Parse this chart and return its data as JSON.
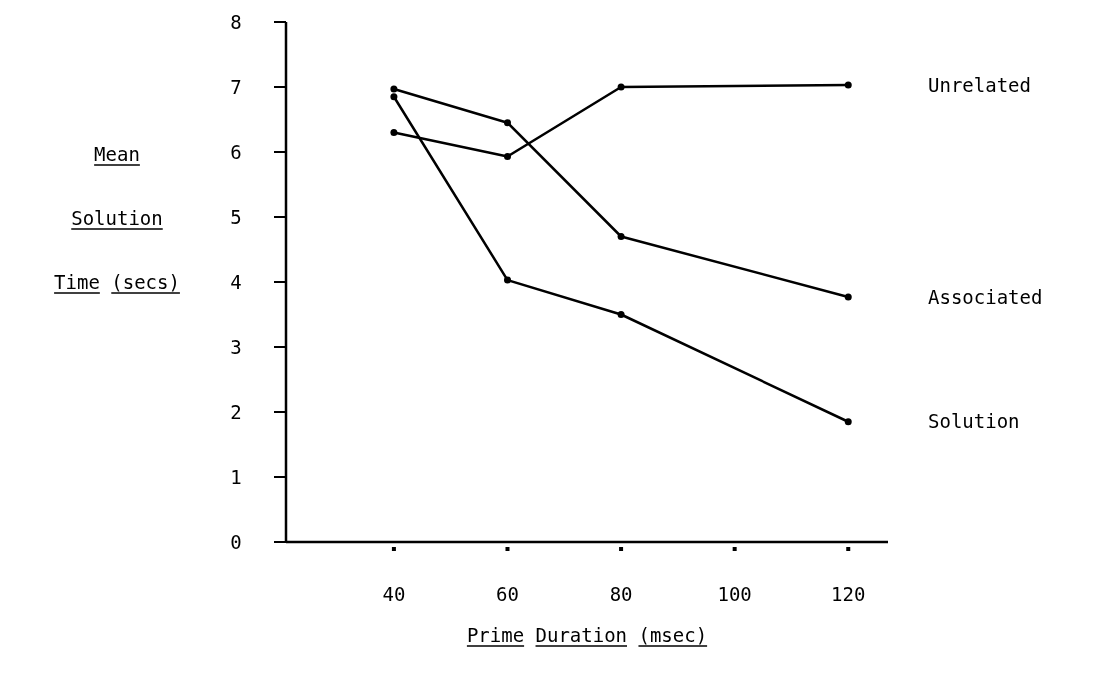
{
  "chart_data": {
    "type": "line",
    "xlabel": "Prime Duration (msec)",
    "ylabel": "Mean\nSolution\nTime (secs)",
    "x": [
      40,
      60,
      80,
      120
    ],
    "xlim": [
      21,
      127
    ],
    "xticks": [
      40,
      60,
      80,
      100,
      120
    ],
    "ylim": [
      0,
      8
    ],
    "yticks": [
      0,
      1,
      2,
      3,
      4,
      5,
      6,
      7,
      8
    ],
    "grid": false,
    "marker": "circle",
    "line_style": "solid",
    "series": [
      {
        "name": "Unrelated",
        "color": "#000000",
        "values": [
          6.3,
          5.93,
          7.0,
          7.03
        ]
      },
      {
        "name": "Associated",
        "color": "#000000",
        "values": [
          6.97,
          6.45,
          4.7,
          3.77
        ]
      },
      {
        "name": "Solution",
        "color": "#000000",
        "values": [
          6.85,
          4.03,
          3.5,
          1.85
        ]
      }
    ]
  }
}
